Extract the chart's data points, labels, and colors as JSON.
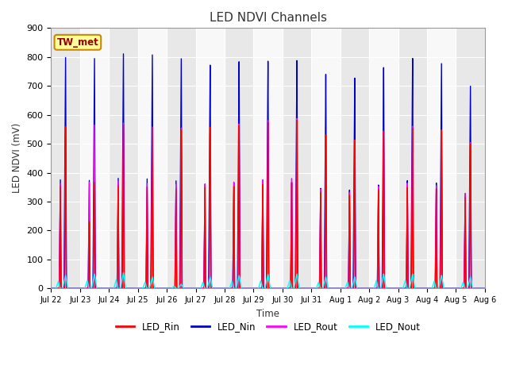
{
  "title": "LED NDVI Channels",
  "ylabel": "LED NDVI (mV)",
  "xlabel": "Time",
  "ylim": [
    0,
    900
  ],
  "background_color": "#ffffff",
  "plot_bg_color": "#f2f2f2",
  "alt_band_color1": "#e8e8e8",
  "alt_band_color2": "#f8f8f8",
  "grid_color": "#ffffff",
  "line_colors": {
    "LED_Rin": "#ff0000",
    "LED_Nin": "#0000cc",
    "LED_Rout": "#ff00ff",
    "LED_Nout": "#00ffff"
  },
  "legend_label": "TW_met",
  "tick_labels": [
    "Jul 22",
    "Jul 23",
    "Jul 24",
    "Jul 25",
    "Jul 26",
    "Jul 27",
    "Jul 28",
    "Jul 29",
    "Jul 30",
    "Jul 31",
    "Aug 1",
    "Aug 2",
    "Aug 3",
    "Aug 4",
    "Aug 5",
    "Aug 6"
  ],
  "num_days": 15,
  "nin_peaks": [
    800,
    800,
    820,
    820,
    810,
    790,
    800,
    800,
    800,
    750,
    735,
    770,
    800,
    780,
    700
  ],
  "rout_peaks": [
    560,
    570,
    580,
    570,
    570,
    575,
    585,
    595,
    600,
    540,
    520,
    550,
    565,
    550,
    505
  ],
  "rin_peaks": [
    560,
    370,
    575,
    570,
    565,
    575,
    580,
    590,
    595,
    540,
    520,
    550,
    560,
    550,
    500
  ],
  "nout_peaks": [
    45,
    50,
    55,
    40,
    15,
    40,
    45,
    50,
    50,
    40,
    40,
    50,
    50,
    45,
    40
  ]
}
